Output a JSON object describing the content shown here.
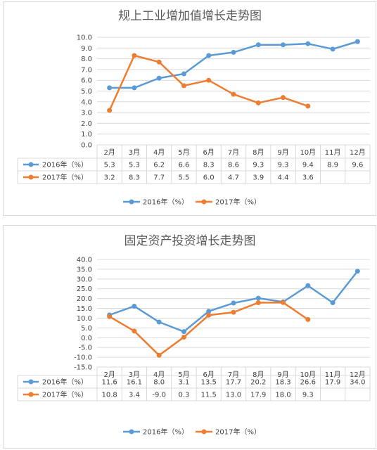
{
  "chart_data": [
    {
      "type": "line",
      "title": "规上工业增加值增长走势图",
      "categories": [
        "2月",
        "3月",
        "4月",
        "5月",
        "6月",
        "7月",
        "8月",
        "9月",
        "10月",
        "11月",
        "12月"
      ],
      "ylim": [
        0.0,
        10.0
      ],
      "yticks": [
        "0.0",
        "1.0",
        "2.0",
        "3.0",
        "4.0",
        "5.0",
        "6.0",
        "7.0",
        "8.0",
        "9.0",
        "10.0"
      ],
      "series": [
        {
          "name": "2016年（%）",
          "color": "#5b9bd5",
          "values": [
            5.3,
            5.3,
            6.2,
            6.6,
            8.3,
            8.6,
            9.3,
            9.3,
            9.4,
            8.9,
            9.6
          ],
          "labels": [
            "5.3",
            "5.3",
            "6.2",
            "6.6",
            "8.3",
            "8.6",
            "9.3",
            "9.3",
            "9.4",
            "8.9",
            "9.6"
          ]
        },
        {
          "name": "2017年（%）",
          "color": "#ed7d31",
          "values": [
            3.2,
            8.3,
            7.7,
            5.5,
            6.0,
            4.7,
            3.9,
            4.4,
            3.6,
            null,
            null
          ],
          "labels": [
            "3.2",
            "8.3",
            "7.7",
            "5.5",
            "6.0",
            "4.7",
            "3.9",
            "4.4",
            "3.6",
            "",
            ""
          ]
        }
      ],
      "grid": true,
      "legend": "bottom"
    },
    {
      "type": "line",
      "title": "固定资产投资增长走势图",
      "categories": [
        "2月",
        "3月",
        "4月",
        "5月",
        "6月",
        "7月",
        "8月",
        "9月",
        "10月",
        "11月",
        "12月"
      ],
      "ylim": [
        -15.0,
        40.0
      ],
      "yticks": [
        "-15.0",
        "-10.0",
        "-5.0",
        "0.0",
        "5.0",
        "10.0",
        "15.0",
        "20.0",
        "25.0",
        "30.0",
        "35.0",
        "40.0"
      ],
      "series": [
        {
          "name": "2016年（%）",
          "color": "#5b9bd5",
          "values": [
            11.6,
            16.1,
            8.0,
            3.1,
            13.5,
            17.7,
            20.2,
            18.3,
            26.6,
            17.9,
            34.0
          ],
          "labels": [
            "11.6",
            "16.1",
            "8.0",
            "3.1",
            "13.5",
            "17.7",
            "20.2",
            "18.3",
            "26.6",
            "17.9",
            "34.0"
          ]
        },
        {
          "name": "2017年（%）",
          "color": "#ed7d31",
          "values": [
            10.8,
            3.4,
            -9.0,
            0.3,
            11.5,
            13.0,
            17.9,
            18.0,
            9.3,
            null,
            null
          ],
          "labels": [
            "10.8",
            "3.4",
            "-9.0",
            "0.3",
            "11.5",
            "13.0",
            "17.9",
            "18.0",
            "9.3",
            "",
            ""
          ]
        }
      ],
      "grid": true,
      "legend": "bottom"
    }
  ]
}
